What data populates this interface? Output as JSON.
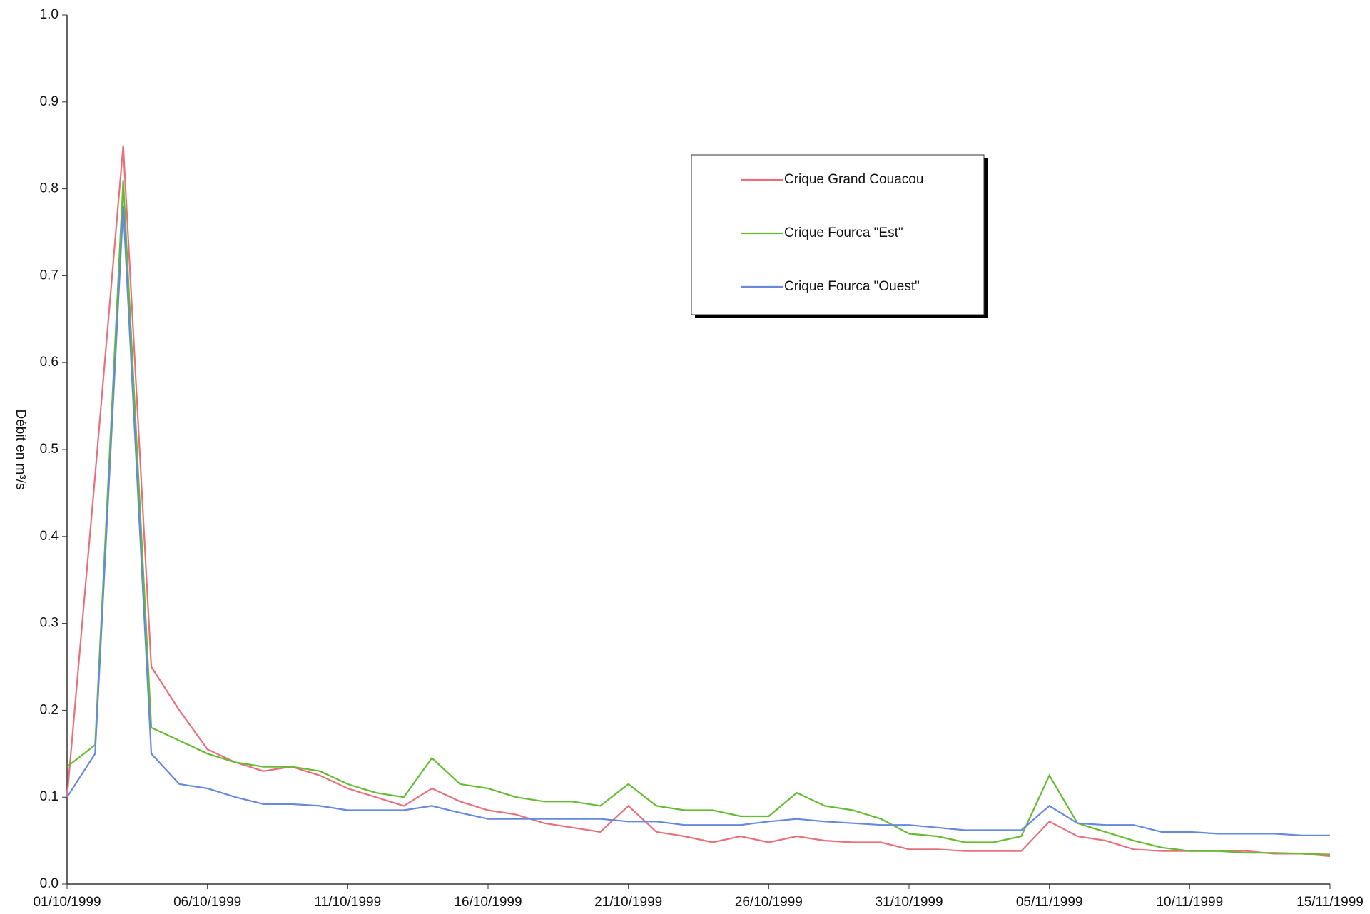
{
  "chart_data": {
    "type": "line",
    "y_label": "Débit en m³/s",
    "x": [
      "01/10/1999",
      "02/10/1999",
      "03/10/1999",
      "04/10/1999",
      "05/10/1999",
      "06/10/1999",
      "07/10/1999",
      "08/10/1999",
      "09/10/1999",
      "10/10/1999",
      "11/10/1999",
      "12/10/1999",
      "13/10/1999",
      "14/10/1999",
      "15/10/1999",
      "16/10/1999",
      "17/10/1999",
      "18/10/1999",
      "19/10/1999",
      "20/10/1999",
      "21/10/1999",
      "22/10/1999",
      "23/10/1999",
      "24/10/1999",
      "25/10/1999",
      "26/10/1999",
      "27/10/1999",
      "28/10/1999",
      "29/10/1999",
      "30/10/1999",
      "31/10/1999",
      "01/11/1999",
      "02/11/1999",
      "03/11/1999",
      "04/11/1999",
      "05/11/1999",
      "06/11/1999",
      "07/11/1999",
      "08/11/1999",
      "09/11/1999",
      "10/11/1999",
      "11/11/1999",
      "12/11/1999",
      "13/11/1999",
      "14/11/1999",
      "15/11/1999"
    ],
    "xticks": [
      "01/10/1999",
      "06/10/1999",
      "11/10/1999",
      "16/10/1999",
      "21/10/1999",
      "26/10/1999",
      "31/10/1999",
      "05/11/1999",
      "10/11/1999",
      "15/11/1999"
    ],
    "ylim": [
      0,
      1
    ],
    "yticks": [
      {
        "value": 0,
        "label": "0.0"
      },
      0.1,
      0.2,
      0.3,
      0.4,
      0.5,
      0.6,
      0.7,
      0.8,
      0.9,
      {
        "value": 1,
        "label": "1.0"
      }
    ],
    "legend": "upper right",
    "series": [
      {
        "name": "Crique Grand Couacou",
        "color": "#e8707a",
        "values": [
          0.1,
          0.47,
          0.85,
          0.25,
          0.2,
          0.155,
          0.14,
          0.13,
          0.135,
          0.125,
          0.11,
          0.1,
          0.09,
          0.11,
          0.095,
          0.085,
          0.08,
          0.07,
          0.065,
          0.06,
          0.09,
          0.06,
          0.055,
          0.048,
          0.055,
          0.048,
          0.055,
          0.05,
          0.048,
          0.048,
          0.04,
          0.04,
          0.038,
          0.038,
          0.038,
          0.072,
          0.055,
          0.05,
          0.04,
          0.038,
          0.038,
          0.038,
          0.038,
          0.035,
          0.035,
          0.032
        ]
      },
      {
        "name": "Crique Fourca \"Est\"",
        "color": "#66bb33",
        "values": [
          0.135,
          0.16,
          0.81,
          0.18,
          0.165,
          0.15,
          0.14,
          0.135,
          0.135,
          0.13,
          0.115,
          0.105,
          0.1,
          0.145,
          0.115,
          0.11,
          0.1,
          0.095,
          0.095,
          0.09,
          0.115,
          0.09,
          0.085,
          0.085,
          0.078,
          0.078,
          0.105,
          0.09,
          0.085,
          0.075,
          0.058,
          0.055,
          0.048,
          0.048,
          0.055,
          0.125,
          0.07,
          0.06,
          0.05,
          0.042,
          0.038,
          0.038,
          0.036,
          0.036,
          0.035,
          0.034
        ]
      },
      {
        "name": "Crique Fourca \"Ouest\"",
        "color": "#6688dd",
        "values": [
          0.1,
          0.15,
          0.78,
          0.15,
          0.115,
          0.11,
          0.1,
          0.092,
          0.092,
          0.09,
          0.085,
          0.085,
          0.085,
          0.09,
          0.082,
          0.075,
          0.075,
          0.075,
          0.075,
          0.075,
          0.072,
          0.072,
          0.068,
          0.068,
          0.068,
          0.072,
          0.075,
          0.072,
          0.07,
          0.068,
          0.068,
          0.065,
          0.062,
          0.062,
          0.062,
          0.09,
          0.07,
          0.068,
          0.068,
          0.06,
          0.06,
          0.058,
          0.058,
          0.058,
          0.056,
          0.056
        ]
      }
    ]
  }
}
